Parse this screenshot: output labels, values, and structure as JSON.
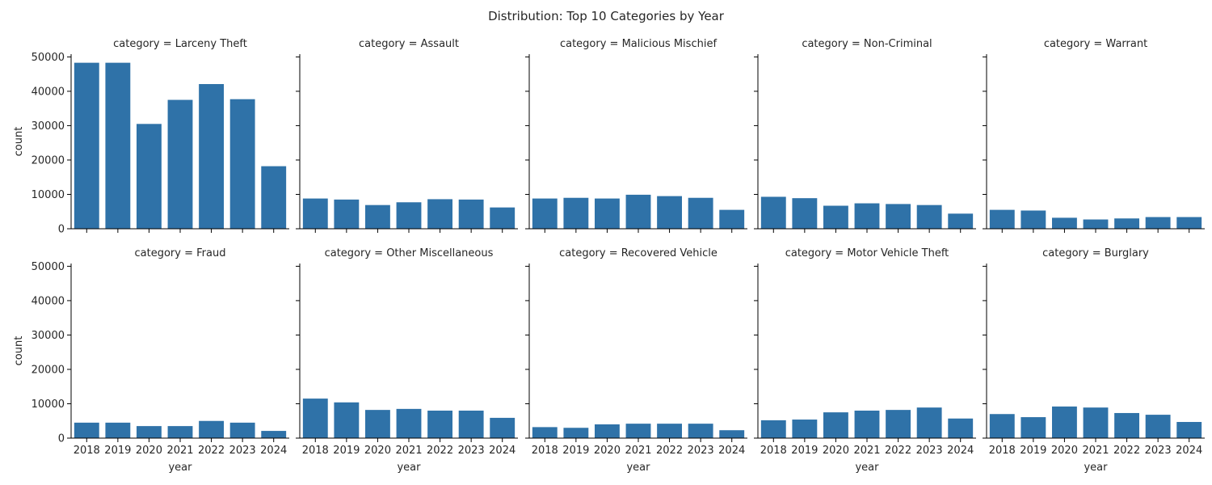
{
  "figure_title": "Distribution: Top 10 Categories by Year",
  "bar_color": "#2f72a8",
  "chart_data": {
    "type": "bar",
    "title": "Distribution: Top 10 Categories by Year",
    "xlabel": "year",
    "ylabel": "count",
    "ylim": [
      0,
      50800
    ],
    "yticks": [
      0,
      10000,
      20000,
      30000,
      40000,
      50000
    ],
    "categories": [
      "2018",
      "2019",
      "2020",
      "2021",
      "2022",
      "2023",
      "2024"
    ],
    "facet_grid": "2 rows x 5 columns, shared axes",
    "panels": [
      {
        "title": "category = Larceny Theft",
        "values": [
          48300,
          48300,
          30500,
          37500,
          42100,
          37700,
          18200
        ]
      },
      {
        "title": "category = Assault",
        "values": [
          8800,
          8500,
          6900,
          7700,
          8600,
          8500,
          6200
        ]
      },
      {
        "title": "category = Malicious Mischief",
        "values": [
          8800,
          9000,
          8800,
          9900,
          9500,
          9000,
          5500
        ]
      },
      {
        "title": "category = Non-Criminal",
        "values": [
          9300,
          8900,
          6700,
          7400,
          7200,
          6900,
          4400
        ]
      },
      {
        "title": "category = Warrant",
        "values": [
          5500,
          5300,
          3200,
          2700,
          3000,
          3400,
          3400
        ]
      },
      {
        "title": "category = Fraud",
        "values": [
          4500,
          4500,
          3500,
          3500,
          5000,
          4500,
          2100
        ]
      },
      {
        "title": "category = Other Miscellaneous",
        "values": [
          11500,
          10400,
          8200,
          8500,
          8000,
          8000,
          5900
        ]
      },
      {
        "title": "category = Recovered Vehicle",
        "values": [
          3200,
          3000,
          4000,
          4200,
          4200,
          4200,
          2300
        ]
      },
      {
        "title": "category = Motor Vehicle Theft",
        "values": [
          5200,
          5400,
          7500,
          8000,
          8200,
          8900,
          5700
        ]
      },
      {
        "title": "category = Burglary",
        "values": [
          7000,
          6100,
          9200,
          8900,
          7300,
          6800,
          4700
        ]
      }
    ]
  }
}
